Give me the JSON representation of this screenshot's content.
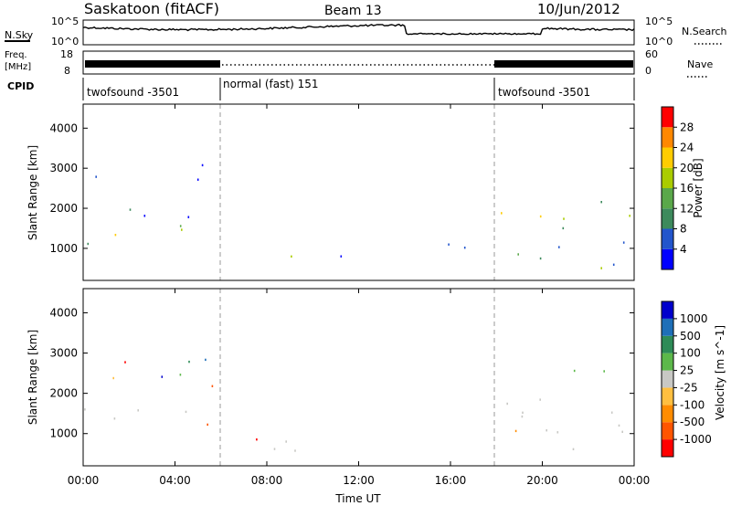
{
  "header": {
    "station": "Saskatoon (fitACF)",
    "beam": "Beam 13",
    "date": "10/Jun/2012"
  },
  "noise_panel": {
    "left_label": "N.Sky",
    "right_label": "N.Search",
    "left_ticks": [
      "10^5",
      "10^0"
    ],
    "right_ticks": [
      "10^5",
      "10^0"
    ]
  },
  "freq_panel": {
    "left_label_line1": "Freq.",
    "left_label_line2": "[MHz]",
    "left_ticks": [
      "18",
      "8"
    ],
    "right_label": "Nave",
    "right_ticks": [
      "60",
      "0"
    ]
  },
  "cpid": {
    "label": "CPID",
    "segments": [
      {
        "name": "twofsound -3501",
        "start": 0,
        "end": 6
      },
      {
        "name": "normal (fast) 151",
        "start": 6,
        "end": 18
      },
      {
        "name": "twofsound -3501",
        "start": 18,
        "end": 24
      }
    ]
  },
  "colors": {
    "power": [
      "#0000ff",
      "#2255cc",
      "#3d8a5c",
      "#5aa84a",
      "#aacc00",
      "#ffcc00",
      "#ff8800",
      "#ff0000"
    ],
    "velocity": [
      "#ff0000",
      "#ff5500",
      "#ff8c00",
      "#ffbf40",
      "#c8c8c4",
      "#5cb84a",
      "#2e8b57",
      "#1e6fb8",
      "#0000cc"
    ],
    "ground_scatter": "#c8c8c4"
  },
  "chart_data": [
    {
      "type": "heatmap",
      "title": "",
      "ylabel": "Slant Range [km]",
      "xlabel": "",
      "x_range_hours": [
        0,
        24
      ],
      "ylim": [
        200,
        4600
      ],
      "yticks": [
        1000,
        2000,
        3000,
        4000
      ],
      "colorbar": {
        "label": "Power [dB]",
        "ticks": [
          4,
          8,
          12,
          16,
          20,
          24,
          28
        ],
        "range": [
          0,
          32
        ]
      },
      "echo_regions": [
        {
          "t0": 0.1,
          "t1": 6.0,
          "r0": 1050,
          "r1": 1700,
          "level": 20
        },
        {
          "t0": 0.3,
          "t1": 5.8,
          "r0": 1800,
          "r1": 2300,
          "level": 10
        },
        {
          "t0": 0.2,
          "t1": 5.5,
          "r0": 2700,
          "r1": 3200,
          "level": 6
        },
        {
          "t0": 6.3,
          "t1": 9.8,
          "r0": 700,
          "r1": 1050,
          "level": 16
        },
        {
          "t0": 10.0,
          "t1": 14.0,
          "r0": 800,
          "r1": 1100,
          "level": 8
        },
        {
          "t0": 14.0,
          "t1": 18.0,
          "r0": 800,
          "r1": 1300,
          "level": 4
        },
        {
          "t0": 18.0,
          "t1": 24.0,
          "r0": 1400,
          "r1": 2300,
          "level": 16
        },
        {
          "t0": 18.2,
          "t1": 24.0,
          "r0": 400,
          "r1": 1200,
          "level": 10
        },
        {
          "t0": 22.3,
          "t1": 24.0,
          "r0": 200,
          "r1": 600,
          "level": 26
        }
      ]
    },
    {
      "type": "heatmap",
      "title": "",
      "ylabel": "Slant Range [km]",
      "xlabel": "Time UT",
      "x_range_hours": [
        0,
        24
      ],
      "xticks": [
        "00:00",
        "04:00",
        "08:00",
        "12:00",
        "16:00",
        "20:00",
        "00:00"
      ],
      "ylim": [
        200,
        4600
      ],
      "yticks": [
        1000,
        2000,
        3000,
        4000
      ],
      "colorbar": {
        "label": "Velocity [m s^-1]",
        "ticks": [
          "1000",
          "500",
          "100",
          "25",
          "-25",
          "-100",
          "-500",
          "-1000"
        ]
      },
      "echo_regions": [
        {
          "t0": 0.0,
          "t1": 6.0,
          "r0": 1100,
          "r1": 1800,
          "kind": "ground"
        },
        {
          "t0": 3.0,
          "t1": 5.8,
          "r0": 1900,
          "r1": 2300,
          "kind": "negative"
        },
        {
          "t0": 0.5,
          "t1": 5.5,
          "r0": 2400,
          "r1": 3300,
          "kind": "mixed"
        },
        {
          "t0": 6.0,
          "t1": 12.0,
          "r0": 600,
          "r1": 1000,
          "kind": "ground"
        },
        {
          "t0": 7.5,
          "t1": 9.0,
          "r0": 700,
          "r1": 1000,
          "kind": "negative"
        },
        {
          "t0": 18.0,
          "t1": 24.0,
          "r0": 600,
          "r1": 2100,
          "kind": "ground"
        },
        {
          "t0": 21.0,
          "t1": 23.5,
          "r0": 2100,
          "r1": 2700,
          "kind": "positive"
        }
      ]
    }
  ]
}
